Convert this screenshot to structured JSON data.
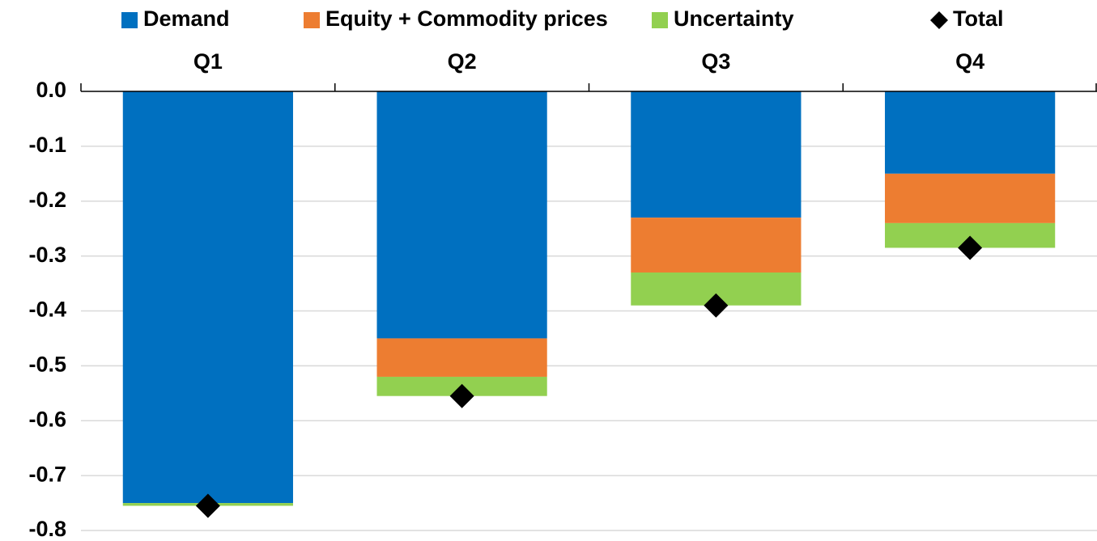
{
  "chart_data": {
    "type": "stacked-bar",
    "categories": [
      "Q1",
      "Q2",
      "Q3",
      "Q4"
    ],
    "series": [
      {
        "name": "Demand",
        "color": "#0070c0",
        "values": [
          -0.75,
          -0.45,
          -0.23,
          -0.15
        ]
      },
      {
        "name": "Equity + Commodity prices",
        "color": "#ed7d31",
        "values": [
          0,
          -0.07,
          -0.1,
          -0.09
        ]
      },
      {
        "name": "Uncertainty",
        "color": "#92d050",
        "values": [
          -0.005,
          -0.035,
          -0.06,
          -0.045
        ]
      },
      {
        "name": "Total",
        "color": "#000000",
        "marker": "diamond",
        "values": [
          -0.755,
          -0.555,
          -0.39,
          -0.285
        ]
      }
    ],
    "ylim": [
      0,
      -0.8
    ],
    "yticks": [
      {
        "value": 0,
        "label": "0.0"
      },
      -0.1,
      -0.2,
      -0.3,
      -0.4,
      -0.5,
      -0.6,
      -0.7,
      -0.8
    ],
    "grid": true,
    "legend": "top"
  }
}
